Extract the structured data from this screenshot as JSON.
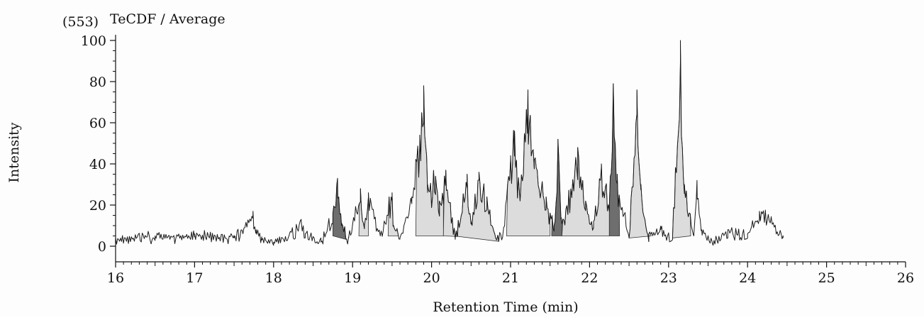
{
  "header": {
    "mass_label": "(553)",
    "title": "TeCDF / Average"
  },
  "chart_data": {
    "type": "line",
    "title": "TeCDF / Average",
    "xlabel": "Retention Time (min)",
    "ylabel": "Intensity",
    "xlim": [
      16,
      26
    ],
    "ylim": [
      0,
      100
    ],
    "x_ticks": [
      "16",
      "17",
      "18",
      "19",
      "20",
      "21",
      "22",
      "23",
      "24",
      "25",
      "26"
    ],
    "y_ticks": [
      "0",
      "20",
      "40",
      "60",
      "80",
      "100"
    ],
    "grid": false,
    "colors": {
      "trace": "#1a1a1a",
      "peak_fill_light": "#dcdcdc",
      "peak_fill_dark": "#6e6e6e"
    },
    "series": [
      {
        "x": [
          16.0,
          16.5,
          17.0,
          17.5,
          17.74,
          17.78,
          17.85,
          18.0,
          18.2,
          18.35,
          18.4,
          18.6,
          18.75,
          18.81,
          18.86,
          18.95,
          19.1,
          19.15,
          19.2,
          19.35,
          19.5,
          19.52,
          19.6,
          19.75,
          19.85,
          19.9,
          19.95,
          20.05,
          20.1,
          20.18,
          20.3,
          20.45,
          20.5,
          20.6,
          20.7,
          20.8,
          20.9,
          21.0,
          21.05,
          21.12,
          21.22,
          21.3,
          21.45,
          21.55,
          21.6,
          21.64,
          21.7,
          21.85,
          21.95,
          22.05,
          22.15,
          22.25,
          22.3,
          22.35,
          22.5,
          22.6,
          22.65,
          22.75,
          22.9,
          23.05,
          23.15,
          23.2,
          23.32,
          23.36,
          23.42,
          23.55,
          23.75,
          24.0,
          24.15,
          24.3,
          24.45
        ],
        "y": [
          4,
          5,
          6,
          4,
          17,
          8,
          3,
          2,
          6,
          12,
          6,
          2,
          16,
          33,
          10,
          4,
          28,
          10,
          26,
          5,
          26,
          10,
          4,
          24,
          54,
          78,
          30,
          34,
          22,
          37,
          4,
          35,
          12,
          36,
          24,
          6,
          5,
          44,
          56,
          22,
          76,
          42,
          24,
          10,
          52,
          14,
          18,
          48,
          22,
          12,
          40,
          20,
          79,
          35,
          4,
          76,
          30,
          6,
          8,
          4,
          100,
          30,
          5,
          32,
          8,
          2,
          8,
          6,
          17,
          14,
          4
        ]
      }
    ],
    "peaks": [
      {
        "start": 18.75,
        "end": 18.93,
        "shade": "dark"
      },
      {
        "start": 19.08,
        "end": 19.2,
        "shade": "light"
      },
      {
        "start": 19.45,
        "end": 19.58,
        "shade": "light"
      },
      {
        "start": 19.8,
        "end": 20.15,
        "shade": "light"
      },
      {
        "start": 20.15,
        "end": 20.32,
        "shade": "light"
      },
      {
        "start": 20.33,
        "end": 20.85,
        "shade": "light"
      },
      {
        "start": 20.95,
        "end": 21.5,
        "shade": "light"
      },
      {
        "start": 21.52,
        "end": 21.65,
        "shade": "dark"
      },
      {
        "start": 21.65,
        "end": 22.25,
        "shade": "light"
      },
      {
        "start": 22.25,
        "end": 22.38,
        "shade": "dark"
      },
      {
        "start": 22.5,
        "end": 22.78,
        "shade": "light"
      },
      {
        "start": 23.05,
        "end": 23.28,
        "shade": "light"
      }
    ]
  }
}
